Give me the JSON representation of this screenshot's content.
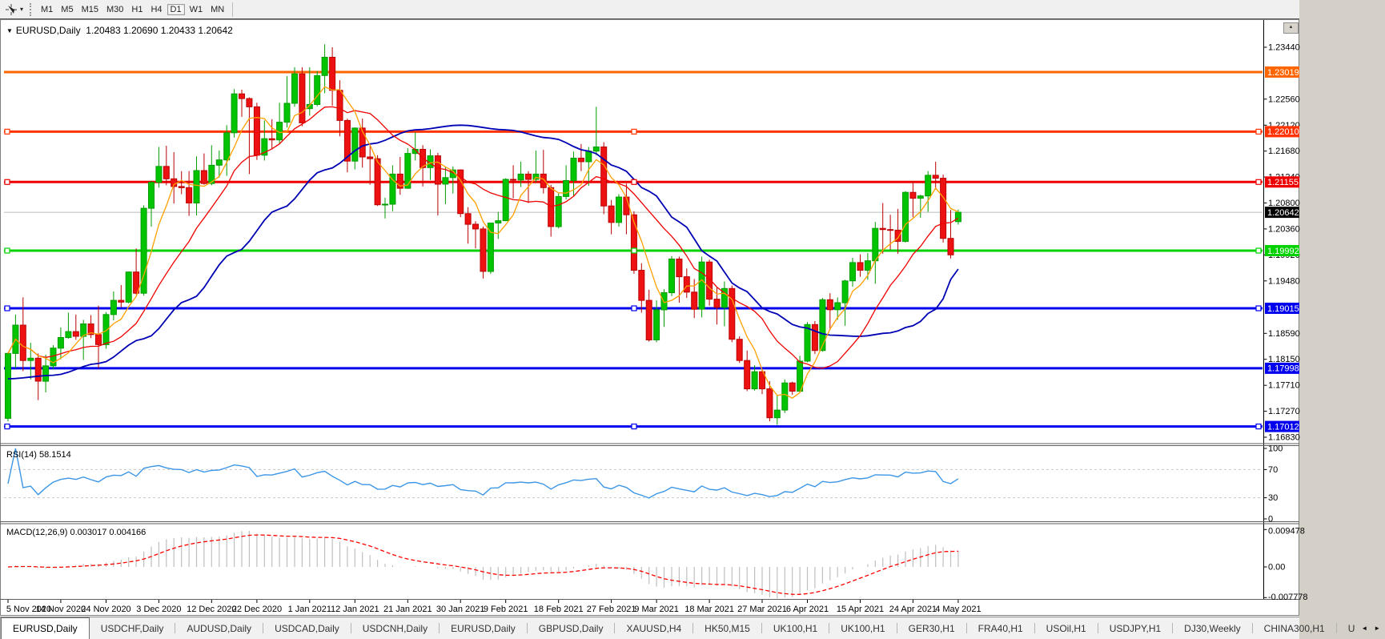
{
  "icons": {
    "caret_down": "▾",
    "triangle_down": "▼",
    "scroll_left": "◄",
    "scroll_right": "►",
    "mini_up": "▲"
  },
  "toolbar": {
    "timeframes": [
      "M1",
      "M5",
      "M15",
      "M30",
      "H1",
      "H4",
      "D1",
      "W1",
      "MN"
    ],
    "active_timeframe": "D1"
  },
  "header": {
    "title": "EURUSD,Daily",
    "ohlc_text": "1.20483 1.20690 1.20433 1.20642"
  },
  "indicator_labels": {
    "rsi": "RSI(14) 58.1514",
    "macd": "MACD(12,26,9) 0.003017 0.004166"
  },
  "price_axis": {
    "ticks": [
      "1.23440",
      "1.22560",
      "1.22120",
      "1.21680",
      "1.21240",
      "1.20800",
      "1.20360",
      "1.19920",
      "1.19480",
      "1.18590",
      "1.18150",
      "1.17710",
      "1.17270",
      "1.16830"
    ]
  },
  "rsi_axis": [
    {
      "label": "100",
      "v": 100
    },
    {
      "label": "70",
      "v": 70
    },
    {
      "label": "30",
      "v": 30
    },
    {
      "label": "0",
      "v": 0
    }
  ],
  "macd_axis": [
    {
      "label": "0.009478",
      "v": 0.009478
    },
    {
      "label": "0.00",
      "v": 0
    },
    {
      "label": "-0.007778",
      "v": -0.007778
    }
  ],
  "chart_data": {
    "type": "candlestick",
    "symbol": "EURUSD",
    "period": "Daily",
    "last_bar": {
      "open": 1.20483,
      "high": 1.2069,
      "low": 1.20433,
      "close": 1.20642
    },
    "current_price": {
      "value": 1.20642,
      "label": "1.20642"
    },
    "x_ticks": [
      [
        "5 Nov 2020",
        0
      ],
      [
        "14 Nov 2020",
        7
      ],
      [
        "24 Nov 2020",
        13
      ],
      [
        "3 Dec 2020",
        20
      ],
      [
        "12 Dec 2020",
        27
      ],
      [
        "22 Dec 2020",
        33
      ],
      [
        "1 Jan 2021",
        40
      ],
      [
        "12 Jan 2021",
        46
      ],
      [
        "21 Jan 2021",
        53
      ],
      [
        "30 Jan 2021",
        60
      ],
      [
        "9 Feb 2021",
        66
      ],
      [
        "18 Feb 2021",
        73
      ],
      [
        "27 Feb 2021",
        80
      ],
      [
        "9 Mar 2021",
        86
      ],
      [
        "18 Mar 2021",
        93
      ],
      [
        "27 Mar 2021",
        100
      ],
      [
        "6 Apr 2021",
        106
      ],
      [
        "15 Apr 2021",
        113
      ],
      [
        "24 Apr 2021",
        120
      ],
      [
        "4 May 2021",
        126
      ]
    ],
    "levels": [
      {
        "price": 1.23019,
        "color": "#FF6600",
        "selected": false
      },
      {
        "price": 1.2201,
        "color": "#FF3300",
        "selected": true
      },
      {
        "price": 1.21155,
        "color": "#EE0000",
        "selected": true
      },
      {
        "price": 1.19992,
        "color": "#00D200",
        "selected": true
      },
      {
        "price": 1.19015,
        "color": "#0000EE",
        "selected": true
      },
      {
        "price": 1.17998,
        "color": "#0000EE",
        "selected": false
      },
      {
        "price": 1.17012,
        "color": "#0000EE",
        "selected": true
      }
    ],
    "dates": [
      "2020-11-05",
      "2020-11-06",
      "2020-11-09",
      "2020-11-10",
      "2020-11-11",
      "2020-11-12",
      "2020-11-13",
      "2020-11-16",
      "2020-11-17",
      "2020-11-18",
      "2020-11-19",
      "2020-11-20",
      "2020-11-23",
      "2020-11-24",
      "2020-11-25",
      "2020-11-26",
      "2020-11-27",
      "2020-11-30",
      "2020-12-01",
      "2020-12-02",
      "2020-12-03",
      "2020-12-04",
      "2020-12-07",
      "2020-12-08",
      "2020-12-09",
      "2020-12-10",
      "2020-12-11",
      "2020-12-14",
      "2020-12-15",
      "2020-12-16",
      "2020-12-17",
      "2020-12-18",
      "2020-12-21",
      "2020-12-22",
      "2020-12-23",
      "2020-12-24",
      "2020-12-28",
      "2020-12-29",
      "2020-12-30",
      "2020-12-31",
      "2021-01-04",
      "2021-01-05",
      "2021-01-06",
      "2021-01-07",
      "2021-01-08",
      "2021-01-11",
      "2021-01-12",
      "2021-01-13",
      "2021-01-14",
      "2021-01-15",
      "2021-01-18",
      "2021-01-19",
      "2021-01-20",
      "2021-01-21",
      "2021-01-22",
      "2021-01-25",
      "2021-01-26",
      "2021-01-27",
      "2021-01-28",
      "2021-01-29",
      "2021-02-01",
      "2021-02-02",
      "2021-02-03",
      "2021-02-04",
      "2021-02-05",
      "2021-02-08",
      "2021-02-09",
      "2021-02-10",
      "2021-02-11",
      "2021-02-12",
      "2021-02-15",
      "2021-02-16",
      "2021-02-17",
      "2021-02-18",
      "2021-02-19",
      "2021-02-22",
      "2021-02-23",
      "2021-02-24",
      "2021-02-25",
      "2021-02-26",
      "2021-03-01",
      "2021-03-02",
      "2021-03-03",
      "2021-03-04",
      "2021-03-05",
      "2021-03-08",
      "2021-03-09",
      "2021-03-10",
      "2021-03-11",
      "2021-03-12",
      "2021-03-15",
      "2021-03-16",
      "2021-03-17",
      "2021-03-18",
      "2021-03-19",
      "2021-03-22",
      "2021-03-23",
      "2021-03-24",
      "2021-03-25",
      "2021-03-26",
      "2021-03-29",
      "2021-03-30",
      "2021-03-31",
      "2021-04-01",
      "2021-04-02",
      "2021-04-05",
      "2021-04-06",
      "2021-04-07",
      "2021-04-08",
      "2021-04-09",
      "2021-04-12",
      "2021-04-13",
      "2021-04-14",
      "2021-04-15",
      "2021-04-16",
      "2021-04-19",
      "2021-04-20",
      "2021-04-21",
      "2021-04-22",
      "2021-04-23",
      "2021-04-26",
      "2021-04-27",
      "2021-04-28",
      "2021-04-29",
      "2021-04-30",
      "2021-05-03",
      "2021-05-04"
    ],
    "candles": [
      [
        1.1715,
        1.1827,
        1.171,
        1.1825
      ],
      [
        1.1825,
        1.1891,
        1.18,
        1.1873
      ],
      [
        1.1873,
        1.192,
        1.1795,
        1.1813
      ],
      [
        1.1813,
        1.1843,
        1.1781,
        1.1817
      ],
      [
        1.1817,
        1.1825,
        1.1746,
        1.1778
      ],
      [
        1.1778,
        1.1823,
        1.1759,
        1.1804
      ],
      [
        1.1804,
        1.1839,
        1.1799,
        1.1834
      ],
      [
        1.1834,
        1.1869,
        1.1815,
        1.1852
      ],
      [
        1.1852,
        1.1894,
        1.185,
        1.1862
      ],
      [
        1.1862,
        1.1891,
        1.1848,
        1.1854
      ],
      [
        1.1854,
        1.1882,
        1.1814,
        1.1875
      ],
      [
        1.1875,
        1.189,
        1.1851,
        1.1857
      ],
      [
        1.1857,
        1.1906,
        1.18,
        1.184
      ],
      [
        1.184,
        1.1895,
        1.1833,
        1.1891
      ],
      [
        1.1891,
        1.193,
        1.1881,
        1.1915
      ],
      [
        1.1915,
        1.1941,
        1.1903,
        1.1912
      ],
      [
        1.1912,
        1.1964,
        1.191,
        1.1963
      ],
      [
        1.1963,
        1.2003,
        1.1925,
        1.1927
      ],
      [
        1.1927,
        1.2076,
        1.1923,
        1.2071
      ],
      [
        1.2071,
        1.2118,
        1.204,
        1.2115
      ],
      [
        1.2115,
        1.2175,
        1.2106,
        1.2142
      ],
      [
        1.2142,
        1.2177,
        1.211,
        1.2121
      ],
      [
        1.2121,
        1.2166,
        1.2079,
        1.2108
      ],
      [
        1.2108,
        1.2134,
        1.2095,
        1.2106
      ],
      [
        1.2106,
        1.2134,
        1.2058,
        1.208
      ],
      [
        1.208,
        1.2159,
        1.2059,
        1.2135
      ],
      [
        1.2135,
        1.2164,
        1.2111,
        1.2113
      ],
      [
        1.2113,
        1.2178,
        1.211,
        1.2144
      ],
      [
        1.2144,
        1.2169,
        1.2123,
        1.2153
      ],
      [
        1.2153,
        1.2212,
        1.2126,
        1.2199
      ],
      [
        1.2199,
        1.2273,
        1.2191,
        1.2265
      ],
      [
        1.2265,
        1.2272,
        1.2226,
        1.2257
      ],
      [
        1.2257,
        1.2259,
        1.2129,
        1.2243
      ],
      [
        1.2243,
        1.225,
        1.2153,
        1.2161
      ],
      [
        1.2161,
        1.222,
        1.2152,
        1.2189
      ],
      [
        1.2189,
        1.2222,
        1.2171,
        1.2187
      ],
      [
        1.2187,
        1.225,
        1.2181,
        1.2217
      ],
      [
        1.2217,
        1.2295,
        1.2208,
        1.2249
      ],
      [
        1.2249,
        1.231,
        1.2243,
        1.2299
      ],
      [
        1.2299,
        1.231,
        1.221,
        1.2216
      ],
      [
        1.224,
        1.231,
        1.2228,
        1.2247
      ],
      [
        1.2247,
        1.2304,
        1.2244,
        1.2296
      ],
      [
        1.2296,
        1.2349,
        1.2266,
        1.2327
      ],
      [
        1.2327,
        1.2344,
        1.2245,
        1.2271
      ],
      [
        1.2271,
        1.2288,
        1.2193,
        1.222
      ],
      [
        1.222,
        1.2223,
        1.2132,
        1.2151
      ],
      [
        1.2151,
        1.2208,
        1.2137,
        1.2207
      ],
      [
        1.2207,
        1.2223,
        1.214,
        1.2158
      ],
      [
        1.2158,
        1.2179,
        1.2111,
        1.2155
      ],
      [
        1.2155,
        1.2161,
        1.2075,
        1.2077
      ],
      [
        1.2077,
        1.2089,
        1.2054,
        1.2078
      ],
      [
        1.2078,
        1.2144,
        1.2066,
        1.2129
      ],
      [
        1.2129,
        1.2158,
        1.2094,
        1.2105
      ],
      [
        1.2105,
        1.2173,
        1.2104,
        1.2164
      ],
      [
        1.2164,
        1.22,
        1.2152,
        1.2171
      ],
      [
        1.2171,
        1.2178,
        1.2108,
        1.214
      ],
      [
        1.214,
        1.2171,
        1.2119,
        1.216
      ],
      [
        1.216,
        1.2165,
        1.2059,
        1.2112
      ],
      [
        1.2112,
        1.2142,
        1.2078,
        1.2123
      ],
      [
        1.2123,
        1.2142,
        1.2096,
        1.2136
      ],
      [
        1.2136,
        1.2137,
        1.2056,
        1.2062
      ],
      [
        1.2062,
        1.2073,
        1.2011,
        1.2044
      ],
      [
        1.2044,
        1.2049,
        1.2003,
        1.2036
      ],
      [
        1.2036,
        1.204,
        1.1952,
        1.1964
      ],
      [
        1.1964,
        1.2046,
        1.196,
        1.2046
      ],
      [
        1.2046,
        1.2065,
        1.2019,
        1.205
      ],
      [
        1.205,
        1.2122,
        1.2049,
        1.212
      ],
      [
        1.212,
        1.2144,
        1.2088,
        1.2119
      ],
      [
        1.2119,
        1.215,
        1.2107,
        1.2129
      ],
      [
        1.2129,
        1.2134,
        1.208,
        1.212
      ],
      [
        1.212,
        1.2169,
        1.2115,
        1.2129
      ],
      [
        1.2129,
        1.217,
        1.2096,
        1.2106
      ],
      [
        1.2106,
        1.2111,
        1.2023,
        1.204
      ],
      [
        1.204,
        1.2096,
        1.2037,
        1.2091
      ],
      [
        1.2091,
        1.2144,
        1.2086,
        1.2118
      ],
      [
        1.2118,
        1.2167,
        1.2091,
        1.2156
      ],
      [
        1.2156,
        1.218,
        1.2134,
        1.215
      ],
      [
        1.215,
        1.2175,
        1.2109,
        1.2168
      ],
      [
        1.2168,
        1.2243,
        1.2161,
        1.2175
      ],
      [
        1.2175,
        1.2183,
        1.2061,
        1.2075
      ],
      [
        1.2075,
        1.2085,
        1.2027,
        1.2047
      ],
      [
        1.2047,
        1.2095,
        1.204,
        1.209
      ],
      [
        1.209,
        1.2113,
        1.2027,
        1.206
      ],
      [
        1.206,
        1.2066,
        1.196,
        1.1966
      ],
      [
        1.1966,
        1.1978,
        1.1894,
        1.1915
      ],
      [
        1.1915,
        1.1933,
        1.1845,
        1.1848
      ],
      [
        1.1848,
        1.1915,
        1.1844,
        1.1899
      ],
      [
        1.1899,
        1.1934,
        1.187,
        1.1928
      ],
      [
        1.1928,
        1.199,
        1.1922,
        1.1985
      ],
      [
        1.1985,
        1.1989,
        1.1911,
        1.1955
      ],
      [
        1.1955,
        1.1969,
        1.1919,
        1.1929
      ],
      [
        1.1929,
        1.1951,
        1.1885,
        1.19
      ],
      [
        1.19,
        1.1989,
        1.1886,
        1.198
      ],
      [
        1.198,
        1.1984,
        1.1906,
        1.1917
      ],
      [
        1.1917,
        1.1938,
        1.1874,
        1.1903
      ],
      [
        1.1903,
        1.1947,
        1.1871,
        1.1935
      ],
      [
        1.1935,
        1.194,
        1.1844,
        1.1849
      ],
      [
        1.1849,
        1.1854,
        1.1809,
        1.1813
      ],
      [
        1.1813,
        1.183,
        1.1761,
        1.1765
      ],
      [
        1.1765,
        1.1805,
        1.1762,
        1.1794
      ],
      [
        1.1794,
        1.1797,
        1.1756,
        1.1765
      ],
      [
        1.1765,
        1.1778,
        1.171,
        1.1716
      ],
      [
        1.1716,
        1.1753,
        1.1704,
        1.1729
      ],
      [
        1.1729,
        1.1781,
        1.1724,
        1.1775
      ],
      [
        1.1775,
        1.1777,
        1.1755,
        1.1761
      ],
      [
        1.1761,
        1.1821,
        1.1758,
        1.1812
      ],
      [
        1.1812,
        1.1878,
        1.181,
        1.1874
      ],
      [
        1.1874,
        1.188,
        1.1824,
        1.183
      ],
      [
        1.183,
        1.1919,
        1.1828,
        1.1916
      ],
      [
        1.1916,
        1.1927,
        1.1865,
        1.1899
      ],
      [
        1.1899,
        1.192,
        1.1882,
        1.1911
      ],
      [
        1.1911,
        1.195,
        1.1872,
        1.1948
      ],
      [
        1.1948,
        1.1987,
        1.1938,
        1.1979
      ],
      [
        1.1979,
        1.1993,
        1.1955,
        1.1966
      ],
      [
        1.1966,
        1.1995,
        1.195,
        1.1982
      ],
      [
        1.1982,
        1.2048,
        1.1943,
        1.2037
      ],
      [
        1.2037,
        1.208,
        1.1994,
        1.2035
      ],
      [
        1.2035,
        1.206,
        1.2001,
        1.2034
      ],
      [
        1.2034,
        1.207,
        1.1994,
        1.2015
      ],
      [
        1.2015,
        1.21,
        1.2013,
        1.2098
      ],
      [
        1.2098,
        1.2117,
        1.2056,
        1.2088
      ],
      [
        1.2088,
        1.2094,
        1.2055,
        1.2092
      ],
      [
        1.2092,
        1.2134,
        1.2065,
        1.2127
      ],
      [
        1.2127,
        1.215,
        1.2103,
        1.2122
      ],
      [
        1.2122,
        1.2128,
        1.2013,
        1.202
      ],
      [
        1.202,
        1.2068,
        1.1986,
        1.1992
      ],
      [
        1.20483,
        1.2069,
        1.20433,
        1.20642
      ]
    ],
    "overlays": {
      "ma_fast": {
        "type": "sma",
        "period": 5,
        "color": "#FFA000"
      },
      "ma_mid": {
        "type": "sma",
        "period": 13,
        "color": "#F00000"
      },
      "ma_slow": {
        "type": "points",
        "color": "#0000B4",
        "points": [
          [
            0,
            1.1782
          ],
          [
            6,
            1.1788
          ],
          [
            12,
            1.1808
          ],
          [
            18,
            1.185
          ],
          [
            24,
            1.1916
          ],
          [
            30,
            1.1996
          ],
          [
            36,
            1.207
          ],
          [
            42,
            1.2136
          ],
          [
            48,
            1.218
          ],
          [
            54,
            1.2204
          ],
          [
            60,
            1.2212
          ],
          [
            66,
            1.2204
          ],
          [
            72,
            1.219
          ],
          [
            77,
            1.2168
          ],
          [
            81,
            1.214
          ],
          [
            85,
            1.21
          ],
          [
            89,
            1.2048
          ],
          [
            93,
            1.199
          ],
          [
            97,
            1.1936
          ],
          [
            101,
            1.1896
          ],
          [
            105,
            1.187
          ],
          [
            109,
            1.1856
          ],
          [
            113,
            1.1854
          ],
          [
            117,
            1.186
          ],
          [
            120,
            1.1872
          ],
          [
            123,
            1.19
          ],
          [
            126,
            1.1968
          ]
        ]
      }
    },
    "indicators": [
      {
        "name": "RSI",
        "period": 14,
        "value": 58.1514,
        "range": [
          0,
          100
        ],
        "guide_levels": [
          70,
          30
        ],
        "color": "#3C96E6"
      },
      {
        "name": "MACD",
        "params": [
          12,
          26,
          9
        ],
        "values": [
          0.003017,
          0.004166
        ],
        "hist_color": "#BFBFBF",
        "signal_color": "#FF0000"
      }
    ]
  },
  "tabs": {
    "items": [
      "EURUSD,Daily",
      "USDCHF,Daily",
      "AUDUSD,Daily",
      "USDCAD,Daily",
      "USDCNH,Daily",
      "EURUSD,Daily",
      "GBPUSD,Daily",
      "XAUUSD,H4",
      "HK50,M15",
      "UK100,H1",
      "UK100,H1",
      "GER30,H1",
      "FRA40,H1",
      "USOil,H1",
      "USDJPY,H1",
      "DJ30,Weekly",
      "CHINA300,H1"
    ],
    "active_index": 0,
    "partial_last": "U"
  },
  "colors": {
    "up": "#00C400",
    "up_stroke": "#009C00",
    "down": "#EE1111",
    "down_stroke": "#BB0000",
    "axis_text": "#000000",
    "panel_border": "#5f5f5f",
    "window_border": "#808080",
    "current_line": "#BBBBBB",
    "current_badge": "#000000",
    "rsi_guide": "#C8C8C8",
    "toolbar_bg": "#F0F0F0",
    "tab_bg": "#F1F1F1"
  }
}
